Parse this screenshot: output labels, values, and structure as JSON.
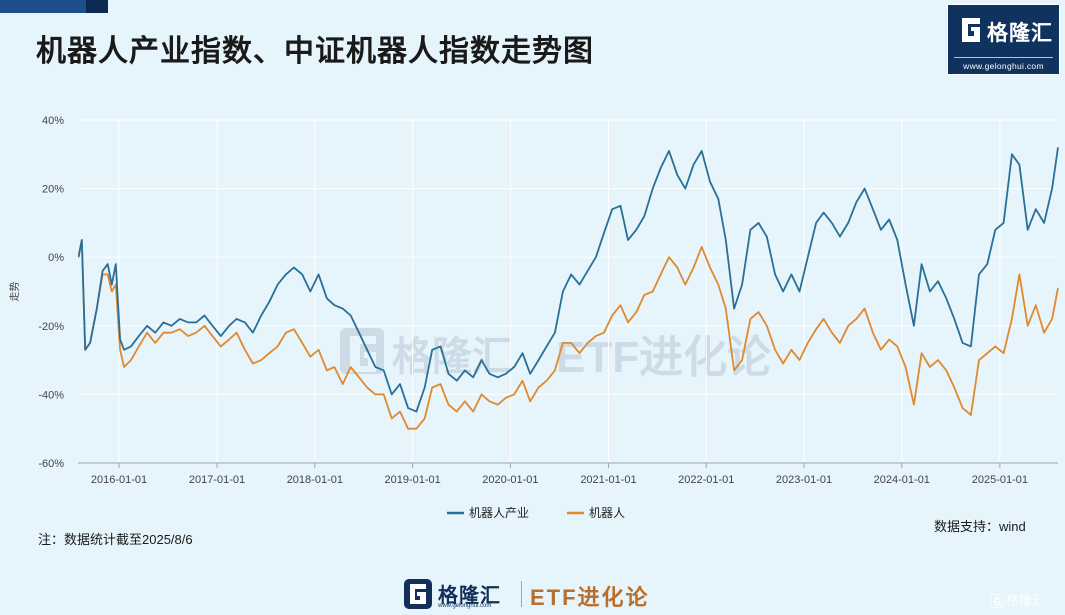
{
  "title": "机器人产业指数、中证机器人指数走势图",
  "logo": {
    "name": "格隆汇",
    "url": "www.gelonghui.com"
  },
  "note": "注：数据统计截至2025/8/6",
  "source": "数据支持：wind",
  "footer": {
    "brand": "格隆汇",
    "url": "www.gelonghui.com",
    "tagline": "ETF进化论"
  },
  "watermark": {
    "text": "格隆汇"
  },
  "colors": {
    "industry": "#2a6f97",
    "robot": "#e0892d",
    "grid": "#ffffff",
    "background": "#e6f4fb"
  },
  "chart_data": {
    "type": "line",
    "title": "机器人产业指数、中证机器人指数走势图",
    "ylabel": "走势",
    "xlabel": "",
    "ylim": [
      -60,
      40
    ],
    "y_ticks": [
      40,
      20,
      0,
      -20,
      -40,
      -60
    ],
    "y_tick_labels": [
      "40%",
      "20%",
      "0%",
      "-20%",
      "-40%",
      "-60%"
    ],
    "x_range": [
      "2015-08-01",
      "2025-08-06"
    ],
    "x_ticks": [
      "2016-01-01",
      "2017-01-01",
      "2018-01-01",
      "2019-01-01",
      "2020-01-01",
      "2021-01-01",
      "2022-01-01",
      "2023-01-01",
      "2024-01-01",
      "2025-01-01"
    ],
    "legend_position": "bottom-center",
    "grid": true,
    "series": [
      {
        "name": "机器人产业",
        "points": [
          [
            "2015-08-03",
            0
          ],
          [
            "2015-08-15",
            5
          ],
          [
            "2015-08-28",
            -27
          ],
          [
            "2015-09-15",
            -25
          ],
          [
            "2015-10-10",
            -15
          ],
          [
            "2015-11-01",
            -4
          ],
          [
            "2015-11-20",
            -2
          ],
          [
            "2015-12-05",
            -8
          ],
          [
            "2015-12-20",
            -2
          ],
          [
            "2016-01-05",
            -24
          ],
          [
            "2016-01-20",
            -27
          ],
          [
            "2016-02-15",
            -26
          ],
          [
            "2016-03-15",
            -23
          ],
          [
            "2016-04-15",
            -20
          ],
          [
            "2016-05-15",
            -22
          ],
          [
            "2016-06-15",
            -19
          ],
          [
            "2016-07-15",
            -20
          ],
          [
            "2016-08-15",
            -18
          ],
          [
            "2016-09-15",
            -19
          ],
          [
            "2016-10-15",
            -19
          ],
          [
            "2016-11-15",
            -17
          ],
          [
            "2016-12-15",
            -20
          ],
          [
            "2017-01-15",
            -23
          ],
          [
            "2017-02-15",
            -20
          ],
          [
            "2017-03-15",
            -18
          ],
          [
            "2017-04-15",
            -19
          ],
          [
            "2017-05-15",
            -22
          ],
          [
            "2017-06-15",
            -17
          ],
          [
            "2017-07-15",
            -13
          ],
          [
            "2017-08-15",
            -8
          ],
          [
            "2017-09-15",
            -5
          ],
          [
            "2017-10-15",
            -3
          ],
          [
            "2017-11-15",
            -5
          ],
          [
            "2017-12-15",
            -10
          ],
          [
            "2018-01-15",
            -5
          ],
          [
            "2018-02-15",
            -12
          ],
          [
            "2018-03-15",
            -14
          ],
          [
            "2018-04-15",
            -15
          ],
          [
            "2018-05-15",
            -17
          ],
          [
            "2018-06-15",
            -22
          ],
          [
            "2018-07-15",
            -27
          ],
          [
            "2018-08-15",
            -32
          ],
          [
            "2018-09-15",
            -33
          ],
          [
            "2018-10-15",
            -40
          ],
          [
            "2018-11-15",
            -37
          ],
          [
            "2018-12-15",
            -44
          ],
          [
            "2019-01-15",
            -45
          ],
          [
            "2019-02-15",
            -38
          ],
          [
            "2019-03-15",
            -27
          ],
          [
            "2019-04-15",
            -26
          ],
          [
            "2019-05-15",
            -34
          ],
          [
            "2019-06-15",
            -36
          ],
          [
            "2019-07-15",
            -33
          ],
          [
            "2019-08-15",
            -35
          ],
          [
            "2019-09-15",
            -30
          ],
          [
            "2019-10-15",
            -34
          ],
          [
            "2019-11-15",
            -35
          ],
          [
            "2019-12-15",
            -34
          ],
          [
            "2020-01-15",
            -32
          ],
          [
            "2020-02-15",
            -28
          ],
          [
            "2020-03-15",
            -34
          ],
          [
            "2020-04-15",
            -30
          ],
          [
            "2020-05-15",
            -26
          ],
          [
            "2020-06-15",
            -22
          ],
          [
            "2020-07-15",
            -10
          ],
          [
            "2020-08-15",
            -5
          ],
          [
            "2020-09-15",
            -8
          ],
          [
            "2020-10-15",
            -4
          ],
          [
            "2020-11-15",
            0
          ],
          [
            "2020-12-15",
            7
          ],
          [
            "2021-01-15",
            14
          ],
          [
            "2021-02-15",
            15
          ],
          [
            "2021-03-15",
            5
          ],
          [
            "2021-04-15",
            8
          ],
          [
            "2021-05-15",
            12
          ],
          [
            "2021-06-15",
            20
          ],
          [
            "2021-07-15",
            26
          ],
          [
            "2021-08-15",
            31
          ],
          [
            "2021-09-15",
            24
          ],
          [
            "2021-10-15",
            20
          ],
          [
            "2021-11-15",
            27
          ],
          [
            "2021-12-15",
            31
          ],
          [
            "2022-01-15",
            22
          ],
          [
            "2022-02-15",
            17
          ],
          [
            "2022-03-15",
            5
          ],
          [
            "2022-04-15",
            -15
          ],
          [
            "2022-05-15",
            -8
          ],
          [
            "2022-06-15",
            8
          ],
          [
            "2022-07-15",
            10
          ],
          [
            "2022-08-15",
            6
          ],
          [
            "2022-09-15",
            -5
          ],
          [
            "2022-10-15",
            -10
          ],
          [
            "2022-11-15",
            -5
          ],
          [
            "2022-12-15",
            -10
          ],
          [
            "2023-01-15",
            0
          ],
          [
            "2023-02-15",
            10
          ],
          [
            "2023-03-15",
            13
          ],
          [
            "2023-04-15",
            10
          ],
          [
            "2023-05-15",
            6
          ],
          [
            "2023-06-15",
            10
          ],
          [
            "2023-07-15",
            16
          ],
          [
            "2023-08-15",
            20
          ],
          [
            "2023-09-15",
            14
          ],
          [
            "2023-10-15",
            8
          ],
          [
            "2023-11-15",
            11
          ],
          [
            "2023-12-15",
            5
          ],
          [
            "2024-01-15",
            -8
          ],
          [
            "2024-02-15",
            -20
          ],
          [
            "2024-03-15",
            -2
          ],
          [
            "2024-04-15",
            -10
          ],
          [
            "2024-05-15",
            -7
          ],
          [
            "2024-06-15",
            -12
          ],
          [
            "2024-07-15",
            -18
          ],
          [
            "2024-08-15",
            -25
          ],
          [
            "2024-09-15",
            -26
          ],
          [
            "2024-10-15",
            -5
          ],
          [
            "2024-11-15",
            -2
          ],
          [
            "2024-12-15",
            8
          ],
          [
            "2025-01-15",
            10
          ],
          [
            "2025-02-15",
            30
          ],
          [
            "2025-03-15",
            27
          ],
          [
            "2025-04-15",
            8
          ],
          [
            "2025-05-15",
            14
          ],
          [
            "2025-06-15",
            10
          ],
          [
            "2025-07-15",
            20
          ],
          [
            "2025-08-06",
            32
          ]
        ]
      },
      {
        "name": "机器人",
        "points": [
          [
            "2015-08-03",
            0
          ],
          [
            "2015-08-15",
            5
          ],
          [
            "2015-08-28",
            -27
          ],
          [
            "2015-09-15",
            -25
          ],
          [
            "2015-10-10",
            -15
          ],
          [
            "2015-11-01",
            -5
          ],
          [
            "2015-11-20",
            -5
          ],
          [
            "2015-12-05",
            -10
          ],
          [
            "2015-12-20",
            -8
          ],
          [
            "2016-01-05",
            -27
          ],
          [
            "2016-01-20",
            -32
          ],
          [
            "2016-02-15",
            -30
          ],
          [
            "2016-03-15",
            -26
          ],
          [
            "2016-04-15",
            -22
          ],
          [
            "2016-05-15",
            -25
          ],
          [
            "2016-06-15",
            -22
          ],
          [
            "2016-07-15",
            -22
          ],
          [
            "2016-08-15",
            -21
          ],
          [
            "2016-09-15",
            -23
          ],
          [
            "2016-10-15",
            -22
          ],
          [
            "2016-11-15",
            -20
          ],
          [
            "2016-12-15",
            -23
          ],
          [
            "2017-01-15",
            -26
          ],
          [
            "2017-02-15",
            -24
          ],
          [
            "2017-03-15",
            -22
          ],
          [
            "2017-04-15",
            -27
          ],
          [
            "2017-05-15",
            -31
          ],
          [
            "2017-06-15",
            -30
          ],
          [
            "2017-07-15",
            -28
          ],
          [
            "2017-08-15",
            -26
          ],
          [
            "2017-09-15",
            -22
          ],
          [
            "2017-10-15",
            -21
          ],
          [
            "2017-11-15",
            -25
          ],
          [
            "2017-12-15",
            -29
          ],
          [
            "2018-01-15",
            -27
          ],
          [
            "2018-02-15",
            -33
          ],
          [
            "2018-03-15",
            -32
          ],
          [
            "2018-04-15",
            -37
          ],
          [
            "2018-05-15",
            -32
          ],
          [
            "2018-06-15",
            -35
          ],
          [
            "2018-07-15",
            -38
          ],
          [
            "2018-08-15",
            -40
          ],
          [
            "2018-09-15",
            -40
          ],
          [
            "2018-10-15",
            -47
          ],
          [
            "2018-11-15",
            -45
          ],
          [
            "2018-12-15",
            -50
          ],
          [
            "2019-01-15",
            -50
          ],
          [
            "2019-02-15",
            -47
          ],
          [
            "2019-03-15",
            -38
          ],
          [
            "2019-04-15",
            -37
          ],
          [
            "2019-05-15",
            -43
          ],
          [
            "2019-06-15",
            -45
          ],
          [
            "2019-07-15",
            -42
          ],
          [
            "2019-08-15",
            -45
          ],
          [
            "2019-09-15",
            -40
          ],
          [
            "2019-10-15",
            -42
          ],
          [
            "2019-11-15",
            -43
          ],
          [
            "2019-12-15",
            -41
          ],
          [
            "2020-01-15",
            -40
          ],
          [
            "2020-02-15",
            -36
          ],
          [
            "2020-03-15",
            -42
          ],
          [
            "2020-04-15",
            -38
          ],
          [
            "2020-05-15",
            -36
          ],
          [
            "2020-06-15",
            -33
          ],
          [
            "2020-07-15",
            -25
          ],
          [
            "2020-08-15",
            -25
          ],
          [
            "2020-09-15",
            -28
          ],
          [
            "2020-10-15",
            -25
          ],
          [
            "2020-11-15",
            -23
          ],
          [
            "2020-12-15",
            -22
          ],
          [
            "2021-01-15",
            -17
          ],
          [
            "2021-02-15",
            -14
          ],
          [
            "2021-03-15",
            -19
          ],
          [
            "2021-04-15",
            -16
          ],
          [
            "2021-05-15",
            -11
          ],
          [
            "2021-06-15",
            -10
          ],
          [
            "2021-07-15",
            -5
          ],
          [
            "2021-08-15",
            0
          ],
          [
            "2021-09-15",
            -3
          ],
          [
            "2021-10-15",
            -8
          ],
          [
            "2021-11-15",
            -3
          ],
          [
            "2021-12-15",
            3
          ],
          [
            "2022-01-15",
            -3
          ],
          [
            "2022-02-15",
            -8
          ],
          [
            "2022-03-15",
            -15
          ],
          [
            "2022-04-15",
            -33
          ],
          [
            "2022-05-15",
            -30
          ],
          [
            "2022-06-15",
            -18
          ],
          [
            "2022-07-15",
            -16
          ],
          [
            "2022-08-15",
            -20
          ],
          [
            "2022-09-15",
            -27
          ],
          [
            "2022-10-15",
            -31
          ],
          [
            "2022-11-15",
            -27
          ],
          [
            "2022-12-15",
            -30
          ],
          [
            "2023-01-15",
            -25
          ],
          [
            "2023-02-15",
            -21
          ],
          [
            "2023-03-15",
            -18
          ],
          [
            "2023-04-15",
            -22
          ],
          [
            "2023-05-15",
            -25
          ],
          [
            "2023-06-15",
            -20
          ],
          [
            "2023-07-15",
            -18
          ],
          [
            "2023-08-15",
            -15
          ],
          [
            "2023-09-15",
            -22
          ],
          [
            "2023-10-15",
            -27
          ],
          [
            "2023-11-15",
            -24
          ],
          [
            "2023-12-15",
            -26
          ],
          [
            "2024-01-15",
            -32
          ],
          [
            "2024-02-15",
            -43
          ],
          [
            "2024-03-15",
            -28
          ],
          [
            "2024-04-15",
            -32
          ],
          [
            "2024-05-15",
            -30
          ],
          [
            "2024-06-15",
            -33
          ],
          [
            "2024-07-15",
            -38
          ],
          [
            "2024-08-15",
            -44
          ],
          [
            "2024-09-15",
            -46
          ],
          [
            "2024-10-15",
            -30
          ],
          [
            "2024-11-15",
            -28
          ],
          [
            "2024-12-15",
            -26
          ],
          [
            "2025-01-15",
            -28
          ],
          [
            "2025-02-15",
            -18
          ],
          [
            "2025-03-15",
            -5
          ],
          [
            "2025-04-15",
            -20
          ],
          [
            "2025-05-15",
            -14
          ],
          [
            "2025-06-15",
            -22
          ],
          [
            "2025-07-15",
            -18
          ],
          [
            "2025-08-06",
            -9
          ]
        ]
      }
    ]
  }
}
